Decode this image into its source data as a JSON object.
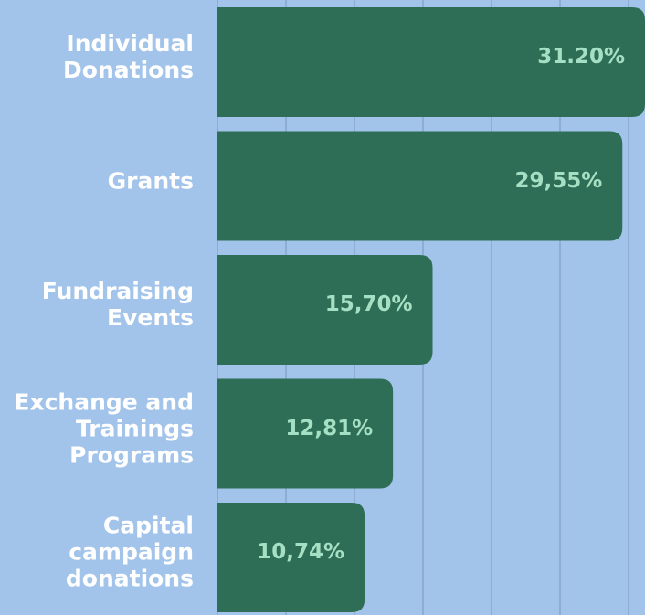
{
  "chart_data": {
    "type": "hbar",
    "categories": [
      "Individual\nDonations",
      "Grants",
      "Fundraising\nEvents",
      "Exchange and\nTrainings\nPrograms",
      "Capital\ncampaign\ndonations"
    ],
    "values": [
      31.2,
      29.55,
      15.7,
      12.81,
      10.74
    ],
    "value_labels": [
      "31.20%",
      "29,55%",
      "15,70%",
      "12,81%",
      "10,74%"
    ],
    "color": "#2f6e56",
    "xlim": [
      0,
      31.2
    ],
    "xticks": [
      0,
      5,
      10,
      15,
      20,
      25,
      30
    ],
    "grid": true
  }
}
